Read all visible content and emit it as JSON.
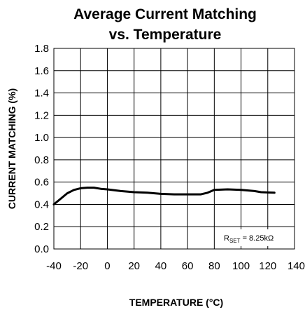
{
  "chart_data": {
    "type": "line",
    "title_lines": [
      "Average Current Matching",
      "vs. Temperature"
    ],
    "xlabel": "TEMPERATURE (°C)",
    "ylabel": "CURRENT MATCHING (%)",
    "xlim": [
      -40,
      140
    ],
    "ylim": [
      0.0,
      1.8
    ],
    "x_ticks": [
      "-40",
      "-20",
      "0",
      "20",
      "40",
      "60",
      "80",
      "100",
      "120",
      "140"
    ],
    "y_ticks": [
      "0.0",
      "0.2",
      "0.4",
      "0.6",
      "0.8",
      "1.0",
      "1.2",
      "1.4",
      "1.6",
      "1.8"
    ],
    "grid": true,
    "annotation": {
      "base": "R",
      "subscript": "SET",
      "rest": " = 8.25kΩ"
    },
    "series": [
      {
        "x": [
          -40,
          -35,
          -30,
          -25,
          -20,
          -15,
          -10,
          -5,
          0,
          10,
          20,
          30,
          40,
          50,
          60,
          70,
          75,
          80,
          90,
          100,
          110,
          115,
          125
        ],
        "y": [
          0.4,
          0.45,
          0.5,
          0.53,
          0.545,
          0.55,
          0.55,
          0.54,
          0.535,
          0.52,
          0.51,
          0.505,
          0.495,
          0.49,
          0.49,
          0.49,
          0.505,
          0.53,
          0.535,
          0.53,
          0.52,
          0.51,
          0.505
        ]
      }
    ],
    "colors": {
      "line": "#000000",
      "grid": "#000000"
    }
  }
}
